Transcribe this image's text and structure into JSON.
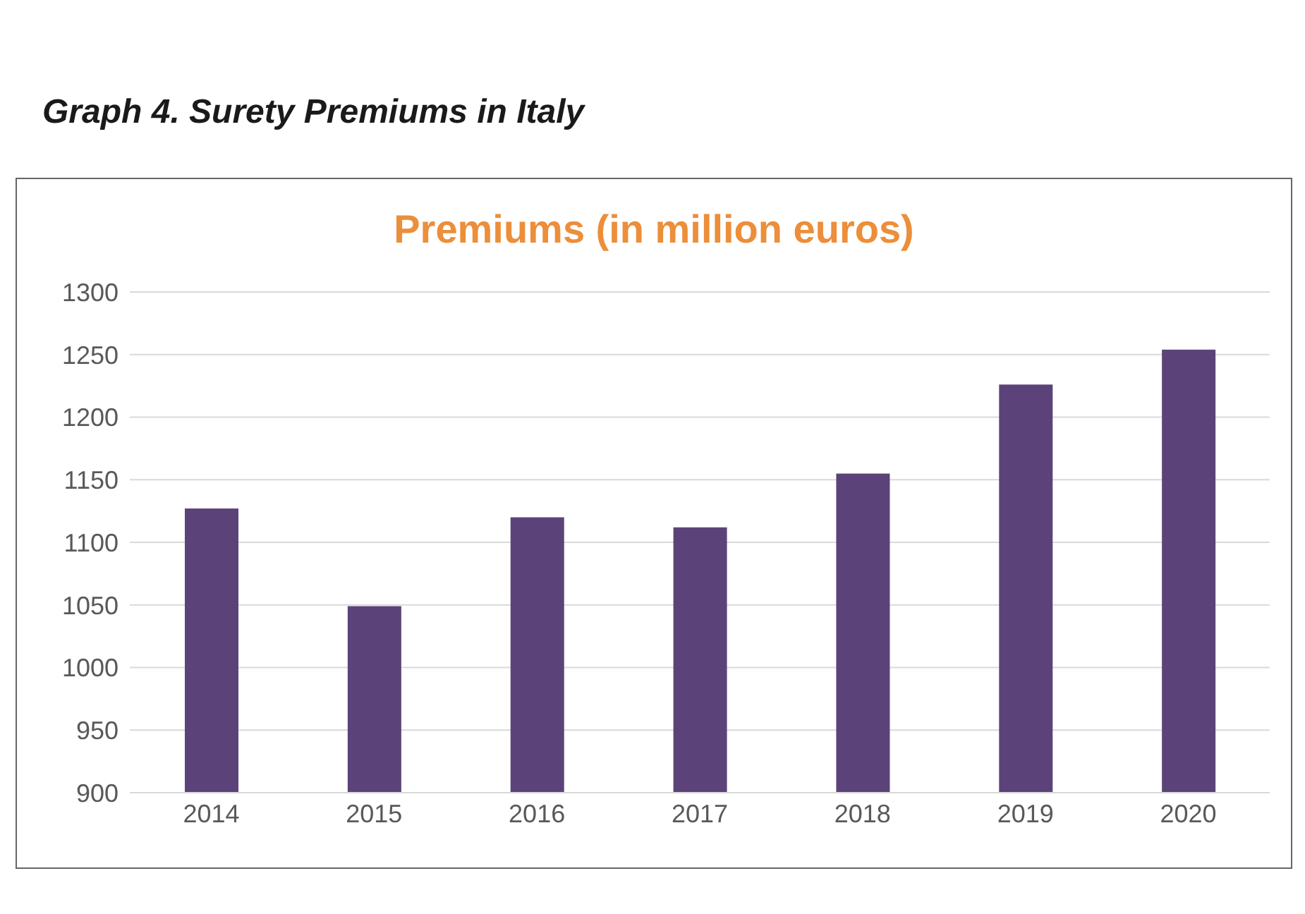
{
  "chart_data": {
    "type": "bar",
    "title": "Graph 4. Surety Premiums in Italy",
    "subtitle": "Premiums (in million euros)",
    "categories": [
      "2014",
      "2015",
      "2016",
      "2017",
      "2018",
      "2019",
      "2020"
    ],
    "values": [
      1127,
      1049,
      1120,
      1112,
      1155,
      1226,
      1254
    ],
    "color": "#5b4379",
    "ylim": [
      900,
      1300
    ],
    "yticks": [
      900,
      950,
      1000,
      1050,
      1100,
      1150,
      1200,
      1250,
      1300
    ],
    "grid": "y"
  }
}
